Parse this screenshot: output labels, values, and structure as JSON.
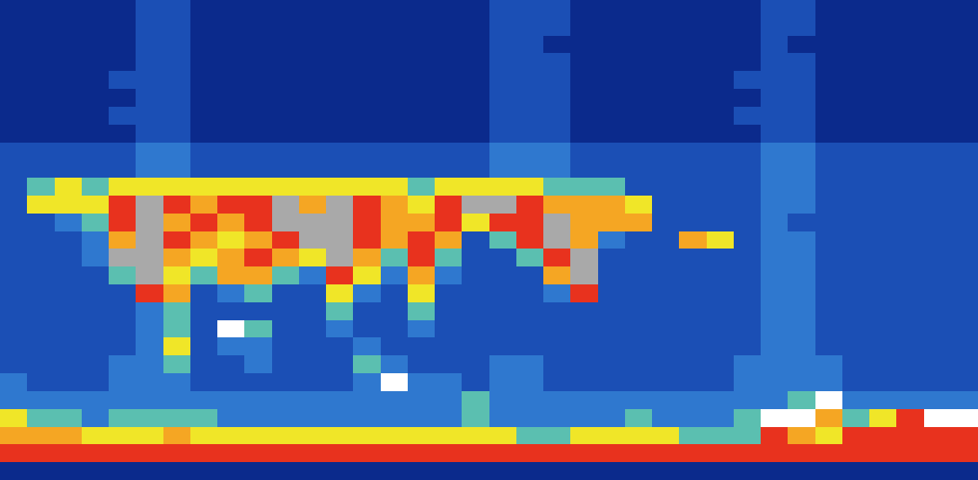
{
  "chart_data": {
    "type": "heatmap",
    "zlim": [
      0,
      8
    ],
    "tick_labels": false,
    "grid": false,
    "cells": [
      [
        0,
        0,
        0,
        0,
        0,
        1,
        1,
        0,
        0,
        0,
        0,
        0,
        0,
        0,
        0,
        0,
        0,
        0,
        1,
        1,
        1,
        0,
        0,
        0,
        0,
        0,
        0,
        0,
        1,
        1,
        0,
        0,
        0,
        0,
        0,
        0
      ],
      [
        0,
        0,
        0,
        0,
        0,
        1,
        1,
        0,
        0,
        0,
        0,
        0,
        0,
        0,
        0,
        0,
        0,
        0,
        1,
        1,
        1,
        0,
        0,
        0,
        0,
        0,
        0,
        0,
        1,
        1,
        0,
        0,
        0,
        0,
        0,
        0
      ],
      [
        0,
        0,
        0,
        0,
        0,
        1,
        1,
        0,
        0,
        0,
        0,
        0,
        0,
        0,
        0,
        0,
        0,
        0,
        1,
        1,
        0,
        0,
        0,
        0,
        0,
        0,
        0,
        0,
        1,
        0,
        0,
        0,
        0,
        0,
        0,
        0
      ],
      [
        0,
        0,
        0,
        0,
        0,
        1,
        1,
        0,
        0,
        0,
        0,
        0,
        0,
        0,
        0,
        0,
        0,
        0,
        1,
        1,
        1,
        0,
        0,
        0,
        0,
        0,
        0,
        0,
        1,
        1,
        0,
        0,
        0,
        0,
        0,
        0
      ],
      [
        0,
        0,
        0,
        0,
        1,
        1,
        1,
        0,
        0,
        0,
        0,
        0,
        0,
        0,
        0,
        0,
        0,
        0,
        1,
        1,
        1,
        0,
        0,
        0,
        0,
        0,
        0,
        1,
        1,
        1,
        0,
        0,
        0,
        0,
        0,
        0
      ],
      [
        0,
        0,
        0,
        0,
        0,
        1,
        1,
        0,
        0,
        0,
        0,
        0,
        0,
        0,
        0,
        0,
        0,
        0,
        1,
        1,
        1,
        0,
        0,
        0,
        0,
        0,
        0,
        0,
        1,
        1,
        0,
        0,
        0,
        0,
        0,
        0
      ],
      [
        0,
        0,
        0,
        0,
        1,
        1,
        1,
        0,
        0,
        0,
        0,
        0,
        0,
        0,
        0,
        0,
        0,
        0,
        1,
        1,
        1,
        0,
        0,
        0,
        0,
        0,
        0,
        1,
        1,
        1,
        0,
        0,
        0,
        0,
        0,
        0
      ],
      [
        0,
        0,
        0,
        0,
        0,
        1,
        1,
        0,
        0,
        0,
        0,
        0,
        0,
        0,
        0,
        0,
        0,
        0,
        1,
        1,
        1,
        0,
        0,
        0,
        0,
        0,
        0,
        0,
        1,
        1,
        0,
        0,
        0,
        0,
        0,
        0
      ],
      [
        1,
        1,
        1,
        1,
        1,
        2,
        2,
        1,
        1,
        1,
        1,
        1,
        1,
        1,
        1,
        1,
        1,
        1,
        2,
        2,
        2,
        1,
        1,
        1,
        1,
        1,
        1,
        1,
        2,
        2,
        1,
        1,
        1,
        1,
        1,
        1
      ],
      [
        1,
        1,
        1,
        1,
        1,
        2,
        2,
        1,
        1,
        1,
        1,
        1,
        1,
        1,
        1,
        1,
        1,
        1,
        2,
        2,
        2,
        1,
        1,
        1,
        1,
        1,
        1,
        1,
        2,
        2,
        1,
        1,
        1,
        1,
        1,
        1
      ],
      [
        1,
        3,
        4,
        3,
        4,
        4,
        4,
        4,
        4,
        4,
        4,
        4,
        4,
        4,
        4,
        3,
        4,
        4,
        4,
        4,
        3,
        3,
        3,
        1,
        1,
        1,
        1,
        1,
        2,
        2,
        1,
        1,
        1,
        1,
        1,
        1
      ],
      [
        1,
        4,
        4,
        4,
        6,
        7,
        6,
        5,
        6,
        6,
        7,
        5,
        7,
        6,
        5,
        4,
        6,
        7,
        7,
        6,
        5,
        5,
        5,
        4,
        1,
        1,
        1,
        1,
        2,
        2,
        1,
        1,
        1,
        1,
        1,
        1
      ],
      [
        1,
        1,
        2,
        3,
        6,
        7,
        5,
        6,
        5,
        6,
        7,
        7,
        7,
        6,
        5,
        5,
        6,
        4,
        6,
        6,
        7,
        5,
        5,
        5,
        1,
        1,
        1,
        1,
        2,
        1,
        1,
        1,
        1,
        1,
        1,
        1
      ],
      [
        1,
        1,
        1,
        2,
        5,
        7,
        6,
        5,
        4,
        5,
        6,
        7,
        7,
        6,
        5,
        6,
        5,
        1,
        3,
        6,
        7,
        5,
        2,
        1,
        1,
        5,
        4,
        1,
        2,
        2,
        1,
        1,
        1,
        1,
        1,
        1
      ],
      [
        1,
        1,
        1,
        2,
        7,
        7,
        5,
        4,
        5,
        6,
        5,
        4,
        7,
        5,
        3,
        6,
        3,
        1,
        1,
        3,
        6,
        7,
        1,
        1,
        1,
        1,
        1,
        1,
        2,
        2,
        1,
        1,
        1,
        1,
        1,
        1
      ],
      [
        1,
        1,
        1,
        1,
        3,
        7,
        4,
        3,
        5,
        5,
        3,
        2,
        6,
        4,
        2,
        5,
        2,
        1,
        1,
        1,
        5,
        7,
        1,
        1,
        1,
        1,
        1,
        1,
        2,
        2,
        1,
        1,
        1,
        1,
        1,
        1
      ],
      [
        1,
        1,
        1,
        1,
        1,
        6,
        5,
        1,
        2,
        3,
        1,
        1,
        4,
        2,
        1,
        4,
        1,
        1,
        1,
        1,
        2,
        6,
        1,
        1,
        1,
        1,
        1,
        1,
        2,
        2,
        1,
        1,
        1,
        1,
        1,
        1
      ],
      [
        1,
        1,
        1,
        1,
        1,
        2,
        3,
        1,
        1,
        1,
        1,
        1,
        3,
        1,
        1,
        3,
        1,
        1,
        1,
        1,
        1,
        1,
        1,
        1,
        1,
        1,
        1,
        1,
        2,
        2,
        1,
        1,
        1,
        1,
        1,
        1
      ],
      [
        1,
        1,
        1,
        1,
        1,
        2,
        3,
        1,
        8,
        3,
        1,
        1,
        2,
        1,
        1,
        2,
        1,
        1,
        1,
        1,
        1,
        1,
        1,
        1,
        1,
        1,
        1,
        1,
        2,
        2,
        1,
        1,
        1,
        1,
        1,
        1
      ],
      [
        1,
        1,
        1,
        1,
        1,
        2,
        4,
        1,
        2,
        2,
        1,
        1,
        1,
        2,
        1,
        1,
        1,
        1,
        1,
        1,
        1,
        1,
        1,
        1,
        1,
        1,
        1,
        1,
        2,
        2,
        1,
        1,
        1,
        1,
        1,
        1
      ],
      [
        1,
        1,
        1,
        1,
        2,
        2,
        3,
        1,
        1,
        2,
        1,
        1,
        1,
        3,
        2,
        1,
        1,
        1,
        2,
        2,
        1,
        1,
        1,
        1,
        1,
        1,
        1,
        2,
        2,
        2,
        2,
        1,
        1,
        1,
        1,
        1
      ],
      [
        2,
        1,
        1,
        1,
        2,
        2,
        2,
        1,
        1,
        1,
        1,
        1,
        1,
        2,
        8,
        2,
        2,
        1,
        2,
        2,
        1,
        1,
        1,
        1,
        1,
        1,
        1,
        2,
        2,
        2,
        2,
        1,
        1,
        1,
        1,
        1
      ],
      [
        2,
        2,
        2,
        2,
        2,
        2,
        2,
        2,
        2,
        2,
        2,
        2,
        2,
        2,
        2,
        2,
        2,
        3,
        2,
        2,
        2,
        2,
        2,
        2,
        2,
        2,
        2,
        2,
        2,
        3,
        8,
        2,
        2,
        2,
        2,
        2
      ],
      [
        4,
        3,
        3,
        2,
        3,
        3,
        3,
        3,
        2,
        2,
        2,
        2,
        2,
        2,
        2,
        2,
        2,
        3,
        2,
        2,
        2,
        2,
        2,
        3,
        2,
        2,
        2,
        3,
        8,
        8,
        5,
        3,
        4,
        6,
        8,
        8
      ],
      [
        5,
        5,
        5,
        4,
        4,
        4,
        5,
        4,
        4,
        4,
        4,
        4,
        4,
        4,
        4,
        4,
        4,
        4,
        4,
        3,
        3,
        4,
        4,
        4,
        4,
        3,
        3,
        3,
        6,
        5,
        4,
        6,
        6,
        6,
        6,
        6
      ],
      [
        6,
        6,
        6,
        6,
        6,
        6,
        6,
        6,
        6,
        6,
        6,
        6,
        6,
        6,
        6,
        6,
        6,
        6,
        6,
        6,
        6,
        6,
        6,
        6,
        6,
        6,
        6,
        6,
        6,
        6,
        6,
        6,
        6,
        6,
        6,
        6
      ],
      [
        0,
        0,
        0,
        0,
        0,
        0,
        0,
        0,
        0,
        0,
        0,
        0,
        0,
        0,
        0,
        0,
        0,
        0,
        0,
        0,
        0,
        0,
        0,
        0,
        0,
        0,
        0,
        0,
        0,
        0,
        0,
        0,
        0,
        0,
        0,
        0
      ]
    ]
  }
}
